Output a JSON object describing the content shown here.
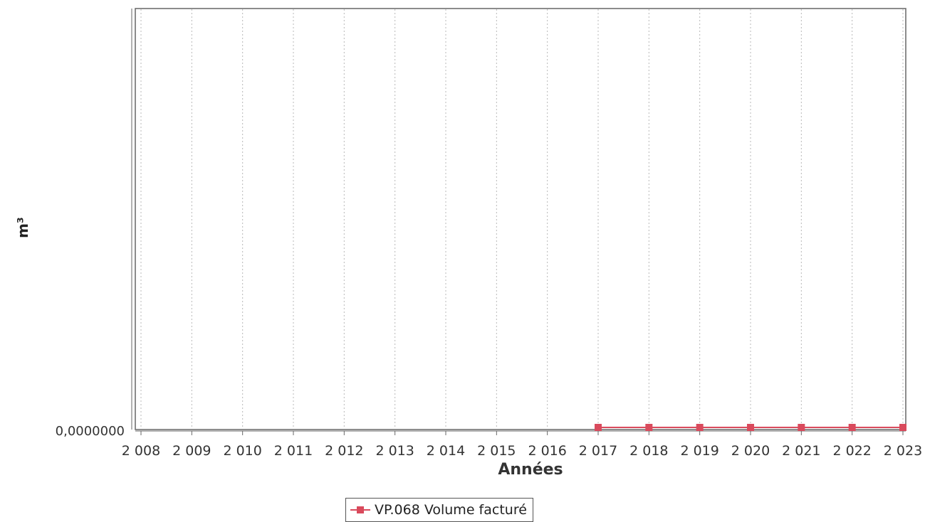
{
  "chart_data": {
    "type": "line",
    "title": "",
    "xlabel": "Années",
    "ylabel": "m³",
    "categories": [
      "2 008",
      "2 009",
      "2 010",
      "2 011",
      "2 012",
      "2 013",
      "2 014",
      "2 015",
      "2 016",
      "2 017",
      "2 018",
      "2 019",
      "2 020",
      "2 021",
      "2 022",
      "2 023"
    ],
    "y_ticks": [
      "0,0000000"
    ],
    "ylim": [
      0,
      1
    ],
    "grid": true,
    "legend_position": "bottom",
    "series": [
      {
        "name": "VP.068 Volume facturé",
        "color": "#d94a5c",
        "values": [
          null,
          null,
          null,
          null,
          null,
          null,
          null,
          null,
          null,
          0,
          0,
          0,
          0,
          0,
          0,
          0
        ]
      }
    ]
  }
}
